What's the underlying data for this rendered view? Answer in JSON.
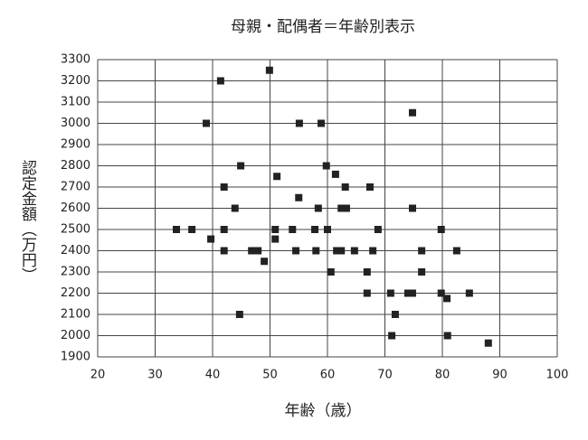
{
  "chart_data": {
    "type": "scatter",
    "title": "母親・配偶者＝年齢別表示",
    "x_label": "年齢（歳）",
    "y_label": "認定金額（万円）",
    "color": "#222222",
    "x": [
      49.9,
      41.4,
      38.9,
      55.1,
      58.9,
      74.8,
      44.9,
      59.8,
      51.2,
      61.4,
      42.0,
      63.1,
      67.4,
      55.0,
      43.9,
      58.4,
      62.4,
      63.3,
      74.8,
      33.7,
      36.4,
      42.0,
      50.9,
      53.9,
      57.8,
      60.0,
      68.8,
      79.8,
      39.7,
      50.9,
      42.0,
      46.8,
      47.9,
      54.5,
      58.0,
      61.6,
      62.4,
      64.7,
      67.9,
      76.4,
      82.5,
      49.0,
      60.6,
      66.9,
      76.4,
      66.9,
      71.0,
      74.0,
      74.8,
      79.8,
      84.7,
      80.8,
      44.7,
      71.8,
      71.2,
      80.9,
      88.0
    ],
    "values": [
      3250,
      3200,
      3000,
      3000,
      3000,
      3050,
      2800,
      2800,
      2750,
      2760,
      2700,
      2700,
      2700,
      2650,
      2600,
      2600,
      2600,
      2600,
      2600,
      2500,
      2500,
      2500,
      2500,
      2500,
      2500,
      2500,
      2500,
      2500,
      2455,
      2455,
      2400,
      2400,
      2400,
      2400,
      2400,
      2400,
      2400,
      2400,
      2400,
      2400,
      2400,
      2350,
      2300,
      2300,
      2300,
      2200,
      2200,
      2200,
      2200,
      2200,
      2200,
      2175,
      2100,
      2100,
      2000,
      2000,
      1965
    ],
    "xlim": [
      20,
      100
    ],
    "xticks": [
      20,
      30,
      40,
      50,
      60,
      70,
      80,
      90,
      100
    ],
    "ylim": [
      1900,
      3300
    ],
    "yticks": [
      1900,
      2000,
      2100,
      2200,
      2300,
      2400,
      2500,
      2600,
      2700,
      2800,
      2900,
      3000,
      3100,
      3200,
      3300
    ],
    "grid": true
  }
}
